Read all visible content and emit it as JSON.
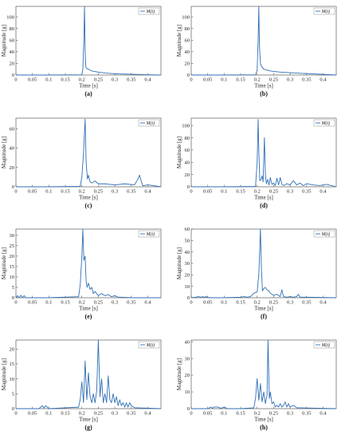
{
  "figure": {
    "line_color": "#2f6fb5"
  },
  "chart_data": [
    {
      "type": "line",
      "caption": "(a)",
      "xlabel": "Time [s]",
      "ylabel": "Magnitude [g]",
      "xlim": [
        0,
        0.44
      ],
      "ylim": [
        0,
        118
      ],
      "xticks": [
        0,
        0.05,
        0.1,
        0.15,
        0.2,
        0.25,
        0.3,
        0.35,
        0.4
      ],
      "xtick_labels": [
        "0",
        "0.05",
        "0.1",
        "0.15",
        "0.2",
        "0.25",
        "0.3",
        "0.35",
        "0.4"
      ],
      "yticks": [
        0,
        20,
        40,
        60,
        80,
        100
      ],
      "ytick_labels": [
        "0",
        "20",
        "40",
        "60",
        "80",
        "100"
      ],
      "legend": "M(t)",
      "legend_position": "top-right",
      "grid": false,
      "series": [
        {
          "name": "M(t)",
          "x": [
            0,
            0.1,
            0.2,
            0.203,
            0.206,
            0.208,
            0.21,
            0.212,
            0.215,
            0.22,
            0.23,
            0.25,
            0.28,
            0.31,
            0.35,
            0.4,
            0.44
          ],
          "y": [
            0,
            0,
            0.5,
            10,
            60,
            118,
            40,
            14,
            11,
            10,
            7,
            5,
            3,
            2,
            1.5,
            0.5,
            0
          ]
        }
      ]
    },
    {
      "type": "line",
      "caption": "(b)",
      "xlabel": "Time [s]",
      "ylabel": "Magnitude [g]",
      "xlim": [
        0,
        0.44
      ],
      "ylim": [
        0,
        118
      ],
      "xticks": [
        0,
        0.05,
        0.1,
        0.15,
        0.2,
        0.25,
        0.3,
        0.35,
        0.4
      ],
      "xtick_labels": [
        "0",
        "0.05",
        "0.1",
        "0.15",
        "0.2",
        "0.25",
        "0.3",
        "0.35",
        "0.4"
      ],
      "yticks": [
        0,
        20,
        40,
        60,
        80,
        100
      ],
      "ytick_labels": [
        "0",
        "20",
        "40",
        "60",
        "80",
        "100"
      ],
      "legend": "M(t)",
      "legend_position": "top-right",
      "grid": false,
      "series": [
        {
          "name": "M(t)",
          "x": [
            0,
            0.1,
            0.195,
            0.2,
            0.203,
            0.205,
            0.207,
            0.21,
            0.213,
            0.22,
            0.24,
            0.27,
            0.3,
            0.33,
            0.37,
            0.44
          ],
          "y": [
            0,
            0,
            0.5,
            8,
            60,
            118,
            50,
            20,
            15,
            10,
            7,
            5,
            4,
            3,
            2,
            0
          ]
        }
      ]
    },
    {
      "type": "line",
      "caption": "(c)",
      "xlabel": "Time [s]",
      "ylabel": "Magnitude [g]",
      "xlim": [
        0,
        0.44
      ],
      "ylim": [
        0,
        71
      ],
      "xticks": [
        0,
        0.05,
        0.1,
        0.15,
        0.2,
        0.25,
        0.3,
        0.35,
        0.4
      ],
      "xtick_labels": [
        "0",
        "0.05",
        "0.1",
        "0.15",
        "0.2",
        "0.25",
        "0.3",
        "0.35",
        "0.4"
      ],
      "yticks": [
        0,
        20,
        40,
        60
      ],
      "ytick_labels": [
        "0",
        "20",
        "40",
        "60"
      ],
      "legend": "M(t)",
      "legend_position": "top-right",
      "grid": false,
      "series": [
        {
          "name": "M(t)",
          "x": [
            0,
            0.1,
            0.195,
            0.2,
            0.205,
            0.21,
            0.213,
            0.217,
            0.22,
            0.225,
            0.23,
            0.24,
            0.25,
            0.27,
            0.3,
            0.33,
            0.36,
            0.37,
            0.375,
            0.38,
            0.385,
            0.4,
            0.44
          ],
          "y": [
            0,
            0,
            0.5,
            10,
            35,
            70,
            25,
            8,
            12,
            5,
            4,
            6,
            3,
            3,
            2,
            3,
            2,
            8,
            12,
            6,
            1,
            2,
            0
          ]
        }
      ]
    },
    {
      "type": "line",
      "caption": "(d)",
      "xlabel": "Time [s]",
      "ylabel": "Magnitude [g]",
      "xlim": [
        0,
        0.44
      ],
      "ylim": [
        0,
        112
      ],
      "xticks": [
        0,
        0.05,
        0.1,
        0.15,
        0.2,
        0.25,
        0.3,
        0.35,
        0.4
      ],
      "xtick_labels": [
        "0",
        "0.05",
        "0.1",
        "0.15",
        "0.2",
        "0.25",
        "0.3",
        "0.35",
        "0.4"
      ],
      "yticks": [
        0,
        20,
        40,
        60,
        80,
        100
      ],
      "ytick_labels": [
        "0",
        "20",
        "40",
        "60",
        "80",
        "100"
      ],
      "legend": "M(t)",
      "legend_position": "top-right",
      "grid": false,
      "series": [
        {
          "name": "M(t)",
          "x": [
            0,
            0.1,
            0.195,
            0.2,
            0.203,
            0.205,
            0.208,
            0.212,
            0.215,
            0.218,
            0.222,
            0.225,
            0.228,
            0.232,
            0.236,
            0.24,
            0.245,
            0.25,
            0.255,
            0.26,
            0.265,
            0.27,
            0.275,
            0.28,
            0.29,
            0.3,
            0.31,
            0.32,
            0.33,
            0.34,
            0.35,
            0.37,
            0.39,
            0.41,
            0.44
          ],
          "y": [
            0,
            0,
            0.5,
            40,
            110,
            60,
            10,
            12,
            18,
            8,
            80,
            20,
            5,
            12,
            3,
            15,
            4,
            6,
            2,
            14,
            3,
            15,
            4,
            2,
            5,
            3,
            10,
            3,
            6,
            2,
            5,
            3,
            2,
            4,
            0
          ]
        }
      ]
    },
    {
      "type": "line",
      "caption": "(e)",
      "xlabel": "Time [s]",
      "ylabel": "Magnitude [g]",
      "xlim": [
        0,
        0.44
      ],
      "ylim": [
        0,
        33
      ],
      "xticks": [
        0,
        0.05,
        0.1,
        0.15,
        0.2,
        0.25,
        0.3,
        0.35,
        0.4
      ],
      "xtick_labels": [
        "0",
        "0.05",
        "0.1",
        "0.15",
        "0.2",
        "0.25",
        "0.3",
        "0.35",
        "0.4"
      ],
      "yticks": [
        0,
        5,
        10,
        15,
        20,
        25,
        30
      ],
      "ytick_labels": [
        "0",
        "5",
        "10",
        "15",
        "20",
        "25",
        "30"
      ],
      "legend": "M(t)",
      "legend_position": "top-right",
      "grid": false,
      "series": [
        {
          "name": "M(t)",
          "x": [
            0,
            0.005,
            0.01,
            0.015,
            0.02,
            0.025,
            0.03,
            0.1,
            0.19,
            0.195,
            0.2,
            0.203,
            0.206,
            0.21,
            0.213,
            0.216,
            0.22,
            0.225,
            0.23,
            0.235,
            0.24,
            0.25,
            0.26,
            0.27,
            0.28,
            0.29,
            0.3,
            0.31,
            0.35,
            0.44
          ],
          "y": [
            0,
            1,
            0,
            1.2,
            0,
            1,
            0,
            0,
            0.5,
            6,
            20,
            33,
            18,
            20,
            8,
            5,
            7,
            4,
            5,
            2,
            3,
            1,
            2,
            1,
            1.5,
            0.5,
            1,
            0.3,
            0,
            0
          ]
        }
      ]
    },
    {
      "type": "line",
      "caption": "(f)",
      "xlabel": "Time [s]",
      "ylabel": "Magnitude [g]",
      "xlim": [
        0,
        0.44
      ],
      "ylim": [
        0,
        60
      ],
      "xticks": [
        0,
        0.05,
        0.1,
        0.15,
        0.2,
        0.25,
        0.3,
        0.35,
        0.4
      ],
      "xtick_labels": [
        "0",
        "0.05",
        "0.1",
        "0.15",
        "0.2",
        "0.25",
        "0.3",
        "0.35",
        "0.4"
      ],
      "yticks": [
        0,
        10,
        20,
        30,
        40,
        50,
        60
      ],
      "ytick_labels": [
        "0",
        "10",
        "20",
        "30",
        "40",
        "50",
        "60"
      ],
      "legend": "M(t)",
      "legend_position": "top-right",
      "grid": false,
      "series": [
        {
          "name": "M(t)",
          "x": [
            0,
            0.015,
            0.02,
            0.03,
            0.035,
            0.04,
            0.045,
            0.05,
            0.06,
            0.1,
            0.15,
            0.16,
            0.17,
            0.18,
            0.19,
            0.2,
            0.205,
            0.21,
            0.213,
            0.216,
            0.22,
            0.225,
            0.23,
            0.235,
            0.24,
            0.25,
            0.26,
            0.27,
            0.275,
            0.28,
            0.29,
            0.3,
            0.31,
            0.32,
            0.325,
            0.33,
            0.35,
            0.44
          ],
          "y": [
            0,
            0.5,
            1,
            0.5,
            1,
            0.3,
            1,
            0.3,
            0,
            0,
            0.5,
            1,
            0.5,
            1,
            4,
            5,
            20,
            60,
            25,
            6,
            8,
            9,
            7,
            6,
            4,
            2,
            3,
            1,
            7,
            1,
            0.5,
            1,
            0.5,
            1,
            3,
            0.5,
            0.5,
            0
          ]
        }
      ]
    },
    {
      "type": "line",
      "caption": "(g)",
      "xlabel": "Time [s]",
      "ylabel": "Magnitude [g]",
      "xlim": [
        0,
        0.44
      ],
      "ylim": [
        0,
        23
      ],
      "xticks": [
        0,
        0.05,
        0.1,
        0.15,
        0.2,
        0.25,
        0.3,
        0.35,
        0.4
      ],
      "xtick_labels": [
        "0",
        "0.05",
        "0.1",
        "0.15",
        "0.2",
        "0.25",
        "0.3",
        "0.35",
        "0.4"
      ],
      "yticks": [
        0,
        5,
        10,
        15,
        20
      ],
      "ytick_labels": [
        "0",
        "5",
        "10",
        "15",
        "20"
      ],
      "legend": "M(t)",
      "legend_position": "top-right",
      "grid": false,
      "series": [
        {
          "name": "M(t)",
          "x": [
            0,
            0.07,
            0.08,
            0.085,
            0.09,
            0.1,
            0.19,
            0.195,
            0.2,
            0.205,
            0.21,
            0.215,
            0.22,
            0.225,
            0.23,
            0.235,
            0.24,
            0.245,
            0.25,
            0.255,
            0.26,
            0.265,
            0.27,
            0.275,
            0.28,
            0.285,
            0.29,
            0.295,
            0.3,
            0.305,
            0.31,
            0.315,
            0.32,
            0.325,
            0.33,
            0.335,
            0.34,
            0.345,
            0.35,
            0.36,
            0.44
          ],
          "y": [
            0,
            0,
            1,
            0.2,
            1,
            0,
            0.5,
            3,
            9,
            2,
            16,
            3,
            12,
            4,
            2,
            5,
            2,
            6,
            23,
            4,
            10,
            2,
            5,
            2,
            11,
            3,
            2,
            5,
            2,
            4,
            1,
            3,
            1,
            2,
            0.5,
            2,
            0.5,
            2,
            1,
            0.3,
            0
          ]
        }
      ]
    },
    {
      "type": "line",
      "caption": "(h)",
      "xlabel": "Time [s]",
      "ylabel": "Magnitude [g]",
      "xlim": [
        0,
        0.44
      ],
      "ylim": [
        0,
        41
      ],
      "xticks": [
        0,
        0.05,
        0.1,
        0.15,
        0.2,
        0.25,
        0.3,
        0.35,
        0.4
      ],
      "xtick_labels": [
        "0",
        "0.05",
        "0.1",
        "0.15",
        "0.2",
        "0.25",
        "0.3",
        "0.35",
        "0.4"
      ],
      "yticks": [
        0,
        10,
        20,
        30,
        40
      ],
      "ytick_labels": [
        "0",
        "10",
        "20",
        "30",
        "40"
      ],
      "legend": "M(t)",
      "legend_position": "top-right",
      "grid": false,
      "series": [
        {
          "name": "M(t)",
          "x": [
            0,
            0.05,
            0.06,
            0.065,
            0.07,
            0.08,
            0.09,
            0.1,
            0.11,
            0.15,
            0.19,
            0.195,
            0.2,
            0.205,
            0.21,
            0.215,
            0.22,
            0.225,
            0.23,
            0.233,
            0.237,
            0.24,
            0.245,
            0.25,
            0.255,
            0.26,
            0.265,
            0.27,
            0.275,
            0.28,
            0.285,
            0.29,
            0.295,
            0.3,
            0.31,
            0.32,
            0.33,
            0.44
          ],
          "y": [
            0,
            0,
            1,
            0.2,
            1,
            1,
            0.2,
            1,
            0,
            0,
            0.5,
            6,
            18,
            5,
            15,
            4,
            10,
            3,
            8,
            41,
            6,
            10,
            3,
            4,
            1,
            2,
            1,
            3,
            1,
            2,
            4,
            1,
            3,
            1,
            2,
            0.5,
            0.5,
            0
          ]
        }
      ]
    }
  ]
}
